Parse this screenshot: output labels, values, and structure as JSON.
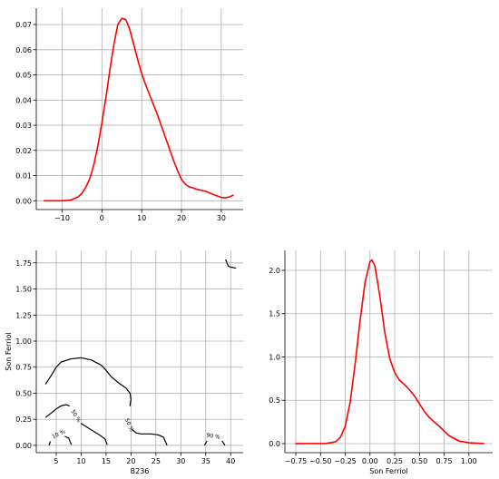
{
  "chart_data": [
    {
      "id": "x-marginal",
      "type": "line",
      "title": "",
      "xlabel": "",
      "ylabel": "",
      "xlim": [
        -16.5,
        35.5
      ],
      "ylim": [
        -0.0035,
        0.0765
      ],
      "xticks": [
        -10,
        0,
        10,
        20,
        30
      ],
      "yticks": [
        0.0,
        0.01,
        0.02,
        0.03,
        0.04,
        0.05,
        0.06,
        0.07
      ],
      "xtick_labels": [
        "−10",
        "0",
        "10",
        "20",
        "30"
      ],
      "ytick_labels": [
        "0.00",
        "0.01",
        "0.02",
        "0.03",
        "0.04",
        "0.05",
        "0.06",
        "0.07"
      ],
      "grid": true,
      "color": "#ff0000",
      "series": [
        {
          "x": [
            -14.5,
            -10,
            -8,
            -6,
            -5,
            -4,
            -3,
            -2,
            -1,
            0,
            1,
            2,
            3,
            4,
            5,
            6,
            7,
            8,
            9,
            10,
            11,
            12,
            14,
            16,
            18,
            19,
            20,
            21,
            22,
            23,
            24,
            26,
            28,
            30,
            31,
            32,
            33
          ],
          "values": [
            0.0,
            0.0,
            0.0002,
            0.0015,
            0.003,
            0.0055,
            0.009,
            0.0145,
            0.022,
            0.031,
            0.041,
            0.052,
            0.062,
            0.07,
            0.0725,
            0.072,
            0.068,
            0.062,
            0.056,
            0.0505,
            0.046,
            0.042,
            0.034,
            0.025,
            0.016,
            0.012,
            0.0085,
            0.0065,
            0.0055,
            0.005,
            0.0045,
            0.0038,
            0.0025,
            0.0013,
            0.0012,
            0.0015,
            0.0022
          ]
        }
      ]
    },
    {
      "id": "joint-contour",
      "type": "line",
      "title": "",
      "xlabel": "B236",
      "ylabel": "Son Ferriol",
      "xlim": [
        1,
        42.5
      ],
      "ylim": [
        -0.07,
        1.87
      ],
      "xticks": [
        5,
        10,
        15,
        20,
        25,
        30,
        35,
        40
      ],
      "yticks": [
        0.0,
        0.25,
        0.5,
        0.75,
        1.0,
        1.25,
        1.5,
        1.75
      ],
      "xtick_labels": [
        "5",
        "10",
        "15",
        "20",
        "25",
        "30",
        "35",
        "40"
      ],
      "ytick_labels": [
        "0.00",
        "0.25",
        "0.50",
        "0.75",
        "1.00",
        "1.25",
        "1.50",
        "1.75"
      ],
      "grid": true,
      "color": "#000000",
      "series": [
        {
          "x": [
            2.9,
            4,
            5,
            6,
            8,
            10,
            12,
            14,
            15,
            16,
            17.5,
            19,
            19.8,
            20,
            19.8
          ],
          "values": [
            0.59,
            0.67,
            0.75,
            0.8,
            0.83,
            0.84,
            0.82,
            0.77,
            0.72,
            0.66,
            0.6,
            0.55,
            0.5,
            0.44,
            0.38
          ]
        },
        {
          "x": [
            2.9,
            4,
            5,
            6,
            7,
            7.6
          ],
          "values": [
            0.27,
            0.31,
            0.35,
            0.38,
            0.39,
            0.38
          ]
        },
        {
          "x": [
            10,
            11,
            12,
            13,
            14,
            14.8,
            15.2
          ],
          "values": [
            0.21,
            0.18,
            0.15,
            0.12,
            0.09,
            0.06,
            0.01
          ]
        },
        {
          "x": [
            3.8,
            3.6
          ],
          "values": [
            0.035,
            0.005
          ]
        },
        {
          "x": [
            6.8,
            7.5,
            8
          ],
          "values": [
            0.085,
            0.07,
            0.01
          ]
        },
        {
          "x": [
            20.3,
            21,
            22,
            24,
            25.5,
            26.5,
            27.2
          ],
          "values": [
            0.15,
            0.12,
            0.11,
            0.11,
            0.1,
            0.08,
            0.005
          ]
        },
        {
          "x": [
            34.8,
            35.2
          ],
          "values": [
            0.005,
            0.04
          ]
        },
        {
          "x": [
            38.3,
            38.8
          ],
          "values": [
            0.04,
            0.005
          ]
        },
        {
          "x": [
            39,
            39.5,
            40,
            41
          ],
          "values": [
            1.78,
            1.72,
            1.71,
            1.7
          ]
        }
      ],
      "contour_labels": [
        {
          "text": "10 %",
          "x": 5.5,
          "y": 0.105,
          "rotate": -25
        },
        {
          "text": "50 %",
          "x": 8.9,
          "y": 0.28,
          "rotate": 58
        },
        {
          "text": "50 %",
          "x": 19.6,
          "y": 0.195,
          "rotate": 65
        },
        {
          "text": "90 %",
          "x": 36.5,
          "y": 0.085,
          "rotate": 10
        }
      ]
    },
    {
      "id": "y-marginal",
      "type": "line",
      "title": "",
      "xlabel": "Son Ferriol",
      "ylabel": "",
      "xlim": [
        -0.86,
        1.24
      ],
      "ylim": [
        -0.105,
        2.23
      ],
      "xticks": [
        -0.75,
        -0.5,
        -0.25,
        0.0,
        0.25,
        0.5,
        0.75,
        1.0
      ],
      "yticks": [
        0.0,
        0.5,
        1.0,
        1.5,
        2.0
      ],
      "xtick_labels": [
        "−0.75",
        "−0.50",
        "−0.25",
        "0.00",
        "0.25",
        "0.50",
        "0.75",
        "1.00"
      ],
      "ytick_labels": [
        "0.0",
        "0.5",
        "1.0",
        "1.5",
        "2.0"
      ],
      "grid": true,
      "color": "#ff0000",
      "series": [
        {
          "x": [
            -0.75,
            -0.45,
            -0.35,
            -0.3,
            -0.25,
            -0.2,
            -0.15,
            -0.1,
            -0.05,
            0.0,
            0.02,
            0.05,
            0.1,
            0.15,
            0.2,
            0.25,
            0.3,
            0.35,
            0.4,
            0.45,
            0.5,
            0.55,
            0.6,
            0.7,
            0.8,
            0.9,
            1.0,
            1.15
          ],
          "values": [
            0.0,
            0.0,
            0.02,
            0.07,
            0.2,
            0.48,
            0.92,
            1.42,
            1.86,
            2.1,
            2.12,
            2.05,
            1.7,
            1.28,
            0.98,
            0.82,
            0.73,
            0.68,
            0.62,
            0.55,
            0.46,
            0.37,
            0.3,
            0.2,
            0.09,
            0.03,
            0.01,
            0.0
          ]
        }
      ]
    }
  ]
}
